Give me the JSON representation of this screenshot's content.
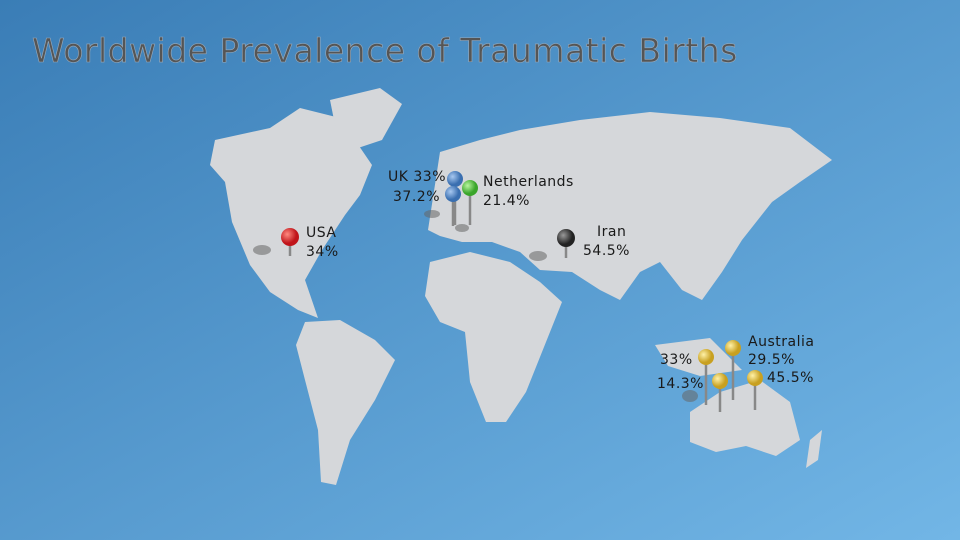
{
  "title": "Worldwide Prevalence of Traumatic Births",
  "labels": [
    {
      "lines": [
        "USA",
        "34%"
      ]
    },
    {
      "lines": [
        "UK 33%",
        "37.2%"
      ]
    },
    {
      "lines": [
        "Netherlands",
        "21.4%"
      ]
    },
    {
      "lines": [
        "Iran",
        "54.5%"
      ]
    },
    {
      "lines": [
        "Australia",
        "29.5%"
      ]
    },
    {
      "lines": [
        "45.5%"
      ]
    },
    {
      "lines": [
        "33%",
        "14.3%"
      ]
    }
  ]
}
